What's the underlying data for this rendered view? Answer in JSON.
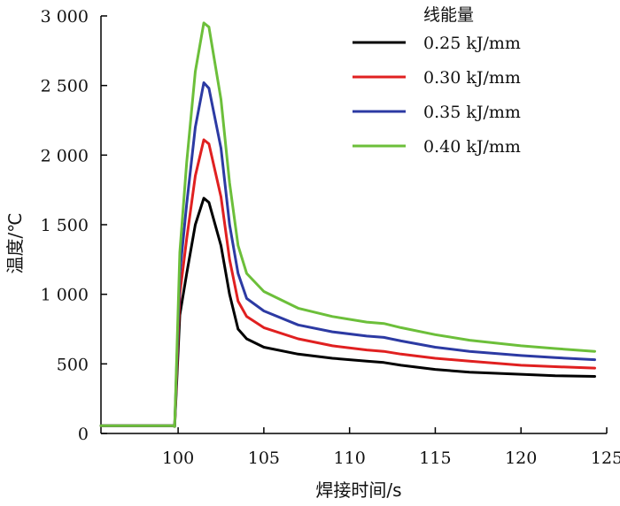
{
  "chart_data": {
    "type": "line",
    "title": "",
    "xlabel": "焊接时间/s",
    "ylabel": "温度/℃",
    "xlim": [
      95.5,
      125
    ],
    "ylim": [
      0,
      3000
    ],
    "x_ticks": [
      100,
      105,
      110,
      115,
      120,
      125
    ],
    "x_tick_labels": [
      "100",
      "105",
      "110",
      "115",
      "120",
      "125"
    ],
    "y_ticks": [
      0,
      500,
      1000,
      1500,
      2000,
      2500,
      3000
    ],
    "y_tick_labels": [
      "0",
      "500",
      "1 000",
      "1 500",
      "2 000",
      "2 500",
      "3 000"
    ],
    "legend_title": "线能量",
    "legend_position": "top-right",
    "series": [
      {
        "name": "0.25 kJ/mm",
        "color": "#000000",
        "points": [
          [
            95.5,
            55
          ],
          [
            99.7,
            55
          ],
          [
            99.8,
            50
          ],
          [
            100.1,
            850
          ],
          [
            100.5,
            1150
          ],
          [
            101.0,
            1500
          ],
          [
            101.5,
            1690
          ],
          [
            101.8,
            1660
          ],
          [
            102.5,
            1350
          ],
          [
            103.0,
            1000
          ],
          [
            103.5,
            750
          ],
          [
            104.0,
            680
          ],
          [
            105.0,
            620
          ],
          [
            107.0,
            570
          ],
          [
            109.0,
            540
          ],
          [
            111.0,
            520
          ],
          [
            112.0,
            510
          ],
          [
            113.0,
            490
          ],
          [
            115.0,
            460
          ],
          [
            117.0,
            440
          ],
          [
            120.0,
            425
          ],
          [
            122.0,
            415
          ],
          [
            124.3,
            410
          ]
        ]
      },
      {
        "name": "0.30 kJ/mm",
        "color": "#e02020",
        "points": [
          [
            95.5,
            55
          ],
          [
            99.7,
            55
          ],
          [
            99.8,
            50
          ],
          [
            100.1,
            1000
          ],
          [
            100.5,
            1400
          ],
          [
            101.0,
            1850
          ],
          [
            101.5,
            2110
          ],
          [
            101.8,
            2080
          ],
          [
            102.5,
            1700
          ],
          [
            103.0,
            1250
          ],
          [
            103.5,
            950
          ],
          [
            104.0,
            840
          ],
          [
            105.0,
            760
          ],
          [
            107.0,
            680
          ],
          [
            109.0,
            630
          ],
          [
            111.0,
            600
          ],
          [
            112.0,
            590
          ],
          [
            113.0,
            570
          ],
          [
            115.0,
            540
          ],
          [
            117.0,
            520
          ],
          [
            120.0,
            490
          ],
          [
            122.0,
            480
          ],
          [
            124.3,
            470
          ]
        ]
      },
      {
        "name": "0.35 kJ/mm",
        "color": "#2c3aa3",
        "points": [
          [
            95.5,
            55
          ],
          [
            99.7,
            55
          ],
          [
            99.8,
            50
          ],
          [
            100.1,
            1150
          ],
          [
            100.5,
            1650
          ],
          [
            101.0,
            2200
          ],
          [
            101.5,
            2520
          ],
          [
            101.8,
            2480
          ],
          [
            102.5,
            2050
          ],
          [
            103.0,
            1500
          ],
          [
            103.5,
            1150
          ],
          [
            104.0,
            970
          ],
          [
            105.0,
            880
          ],
          [
            107.0,
            780
          ],
          [
            109.0,
            730
          ],
          [
            111.0,
            700
          ],
          [
            112.0,
            690
          ],
          [
            113.0,
            665
          ],
          [
            115.0,
            620
          ],
          [
            117.0,
            590
          ],
          [
            120.0,
            560
          ],
          [
            122.0,
            545
          ],
          [
            124.3,
            530
          ]
        ]
      },
      {
        "name": "0.40 kJ/mm",
        "color": "#6cbf3a",
        "points": [
          [
            95.5,
            55
          ],
          [
            99.7,
            55
          ],
          [
            99.8,
            50
          ],
          [
            100.1,
            1300
          ],
          [
            100.5,
            1950
          ],
          [
            101.0,
            2600
          ],
          [
            101.5,
            2950
          ],
          [
            101.8,
            2920
          ],
          [
            102.5,
            2400
          ],
          [
            103.0,
            1800
          ],
          [
            103.5,
            1350
          ],
          [
            104.0,
            1150
          ],
          [
            105.0,
            1020
          ],
          [
            107.0,
            900
          ],
          [
            109.0,
            840
          ],
          [
            111.0,
            800
          ],
          [
            112.0,
            790
          ],
          [
            113.0,
            760
          ],
          [
            115.0,
            710
          ],
          [
            117.0,
            670
          ],
          [
            120.0,
            630
          ],
          [
            122.0,
            610
          ],
          [
            124.3,
            590
          ]
        ]
      }
    ]
  }
}
